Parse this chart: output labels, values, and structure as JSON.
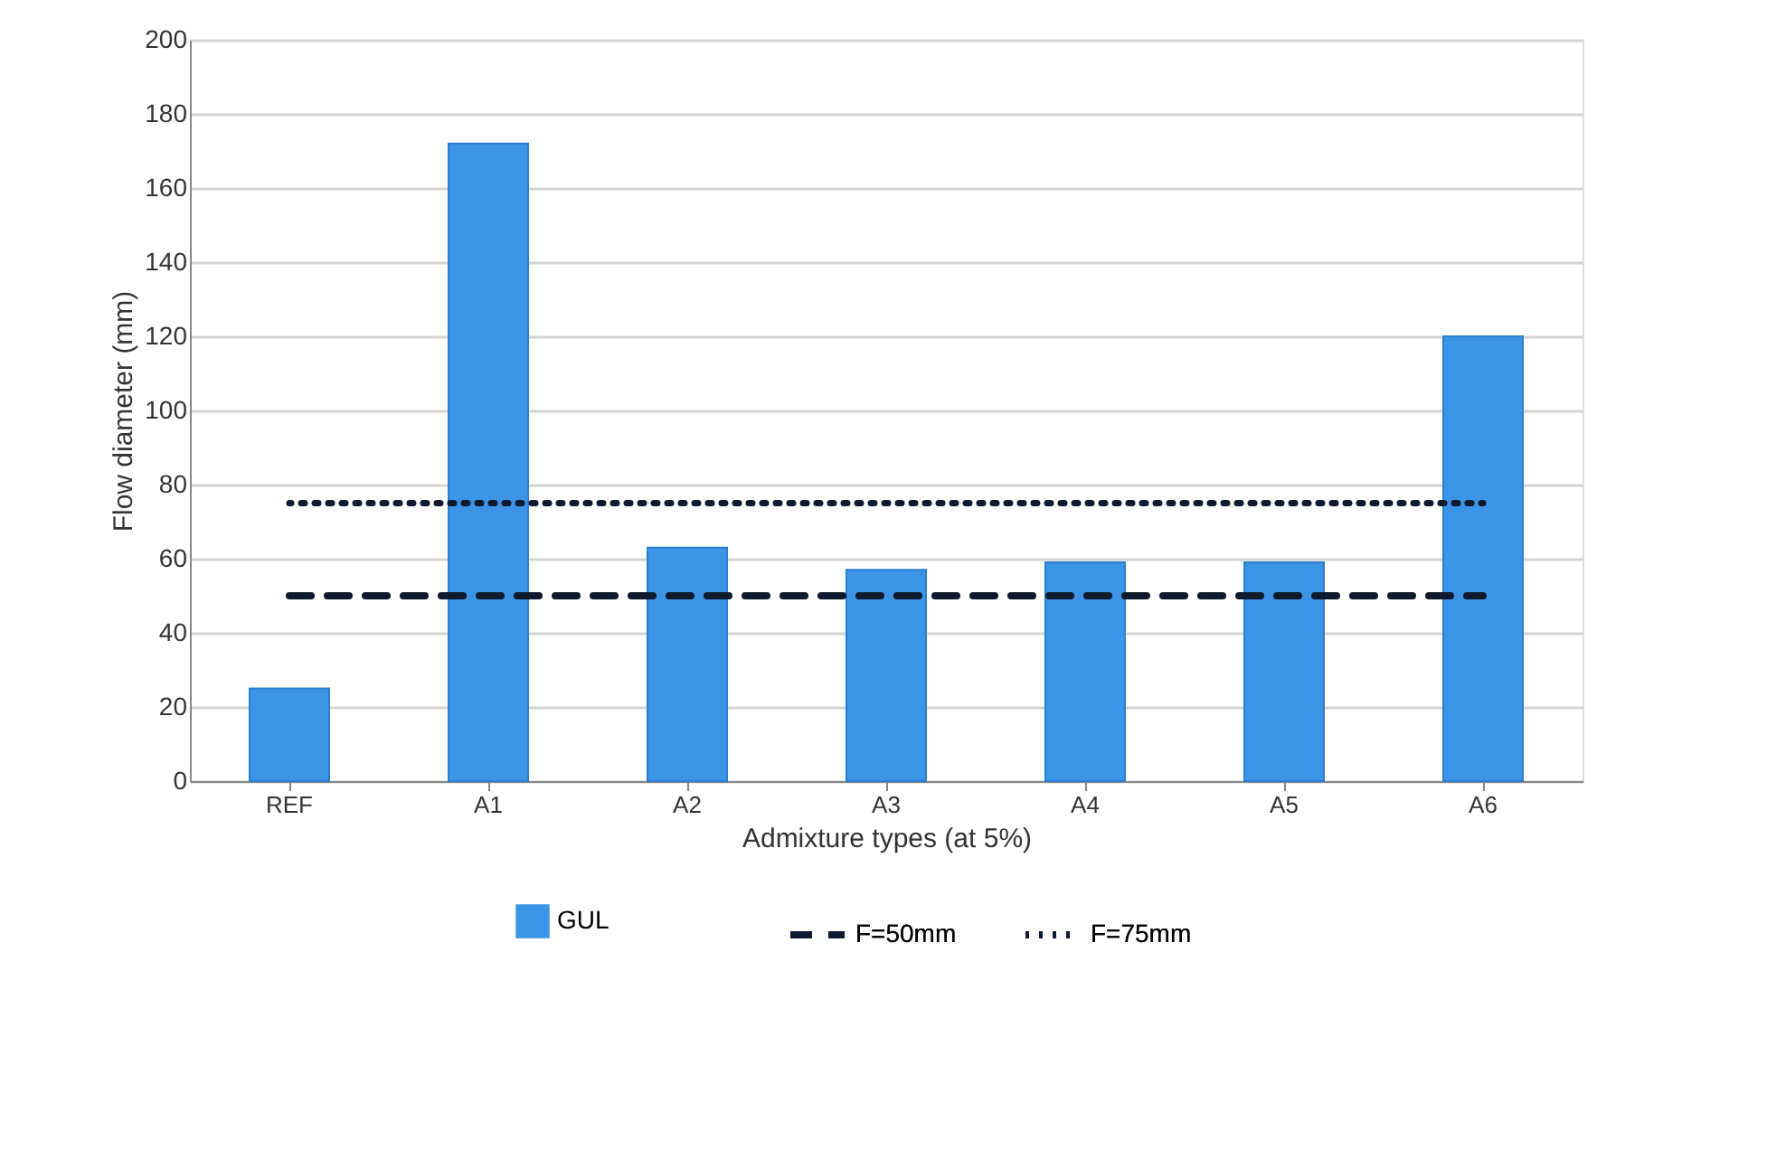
{
  "chart_data": {
    "type": "bar",
    "xlabel": "Admixture types (at 5%)",
    "ylabel": "Flow diameter  (mm)",
    "categories": [
      "REF",
      "A1",
      "A2",
      "A3",
      "A4",
      "A5",
      "A6"
    ],
    "series": [
      {
        "name": "GUL",
        "color": "#3c94e6",
        "values": [
          25,
          172,
          63,
          57,
          59,
          59,
          120
        ]
      },
      {
        "name": "F=50mm",
        "type": "line",
        "line_style": "dashed",
        "color": "#0e1a2e",
        "values": [
          50,
          50,
          50,
          50,
          50,
          50,
          50
        ]
      },
      {
        "name": "F=75mm",
        "type": "line",
        "line_style": "dotted",
        "color": "#0e1a2e",
        "values": [
          75,
          75,
          75,
          75,
          75,
          75,
          75
        ]
      }
    ],
    "ylim": [
      0,
      200
    ],
    "yticks": [
      0,
      20,
      40,
      60,
      80,
      100,
      120,
      140,
      160,
      180,
      200
    ],
    "grid": "y",
    "legend": "bottom"
  }
}
